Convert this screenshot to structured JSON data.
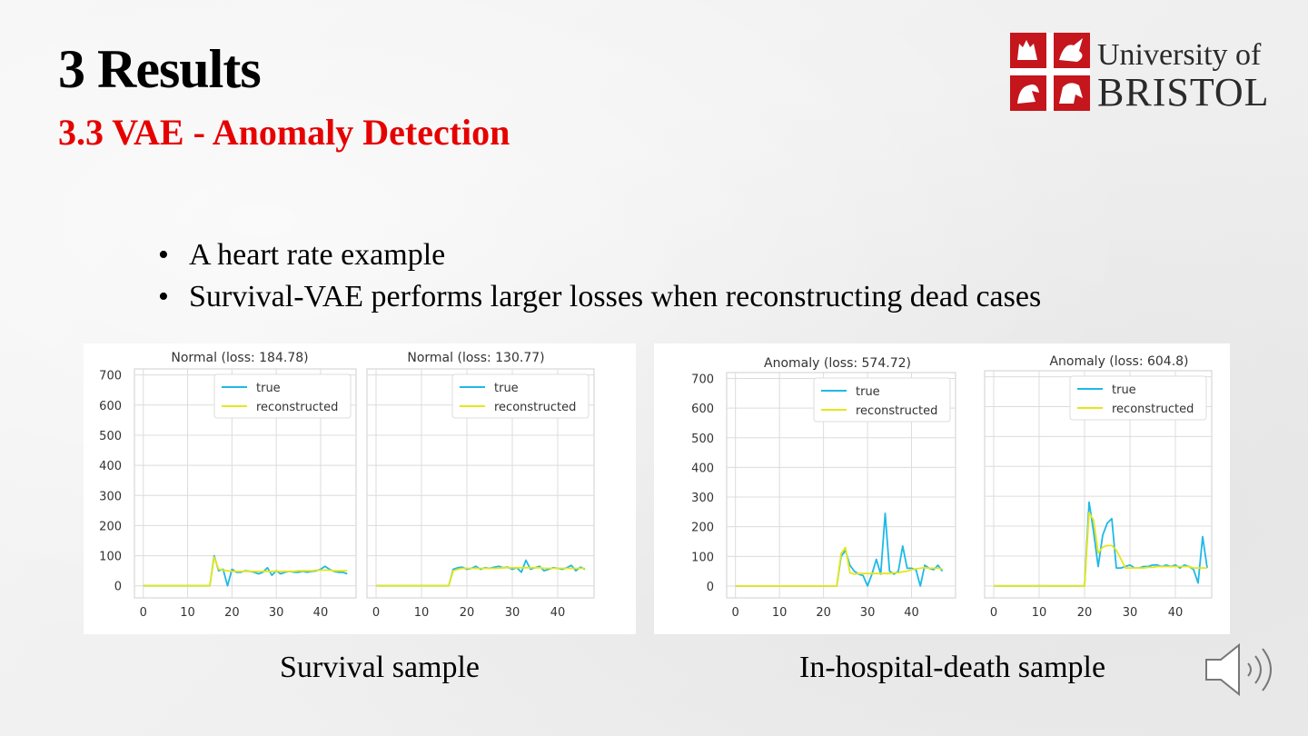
{
  "slide": {
    "title": "3 Results",
    "subtitle_bold": "3.3 VAE -",
    "subtitle_rest": " Anomaly Detection",
    "logo": {
      "line1": "University of",
      "line2": "BRISTOL"
    },
    "bullets": [
      "A heart rate example",
      "Survival-VAE performs larger losses when reconstructing dead cases"
    ],
    "captions": {
      "left": "Survival sample",
      "right": "In-hospital-death sample"
    },
    "colors": {
      "subtitle": "#e60000",
      "true_line": "#1fb9e6",
      "reconstructed_line": "#e6e61a"
    },
    "speaker_icon": "speaker-icon"
  },
  "chart_data": [
    {
      "type": "line",
      "title": "Normal (loss: 184.78)",
      "xlim": [
        -2,
        48
      ],
      "ylim": [
        -40,
        720
      ],
      "xticks": [
        0,
        10,
        20,
        30,
        40
      ],
      "yticks": [
        0,
        100,
        200,
        300,
        400,
        500,
        600,
        700
      ],
      "show_yticks": true,
      "legend": "top-right",
      "series": [
        {
          "name": "true",
          "color": "#1fb9e6",
          "x": [
            0,
            15,
            16,
            17,
            18,
            19,
            20,
            21,
            22,
            23,
            24,
            25,
            26,
            27,
            28,
            29,
            30,
            31,
            32,
            33,
            34,
            35,
            36,
            37,
            38,
            39,
            40,
            41,
            42,
            43,
            44,
            45,
            46
          ],
          "y": [
            0,
            0,
            100,
            50,
            55,
            0,
            55,
            45,
            45,
            50,
            48,
            45,
            40,
            45,
            60,
            35,
            50,
            40,
            45,
            48,
            45,
            45,
            48,
            45,
            48,
            50,
            55,
            65,
            55,
            48,
            45,
            45,
            40
          ]
        },
        {
          "name": "reconstructed",
          "color": "#e6e61a",
          "x": [
            0,
            15,
            16,
            17,
            18,
            19,
            20,
            21,
            22,
            23,
            24,
            25,
            26,
            27,
            28,
            29,
            30,
            31,
            32,
            33,
            34,
            35,
            36,
            37,
            38,
            39,
            40,
            41,
            42,
            43,
            44,
            45,
            46
          ],
          "y": [
            0,
            0,
            95,
            55,
            52,
            50,
            48,
            48,
            48,
            48,
            48,
            48,
            48,
            48,
            48,
            48,
            48,
            48,
            48,
            48,
            48,
            50,
            50,
            50,
            50,
            52,
            52,
            52,
            52,
            50,
            50,
            50,
            50
          ]
        }
      ]
    },
    {
      "type": "line",
      "title": "Normal (loss: 130.77)",
      "xlim": [
        -2,
        48
      ],
      "ylim": [
        -40,
        720
      ],
      "xticks": [
        0,
        10,
        20,
        30,
        40
      ],
      "yticks": [
        0,
        100,
        200,
        300,
        400,
        500,
        600,
        700
      ],
      "show_yticks": false,
      "legend": "top-right",
      "series": [
        {
          "name": "true",
          "color": "#1fb9e6",
          "x": [
            0,
            16,
            17,
            18,
            19,
            20,
            21,
            22,
            23,
            24,
            25,
            26,
            27,
            28,
            29,
            30,
            31,
            32,
            33,
            34,
            35,
            36,
            37,
            38,
            39,
            40,
            41,
            42,
            43,
            44,
            45,
            46
          ],
          "y": [
            0,
            0,
            55,
            60,
            62,
            55,
            58,
            65,
            55,
            60,
            58,
            62,
            65,
            60,
            62,
            55,
            60,
            45,
            85,
            55,
            60,
            65,
            50,
            55,
            60,
            58,
            55,
            60,
            68,
            50,
            62,
            55
          ]
        },
        {
          "name": "reconstructed",
          "color": "#e6e61a",
          "x": [
            0,
            16,
            17,
            18,
            19,
            20,
            21,
            22,
            23,
            24,
            25,
            26,
            27,
            28,
            29,
            30,
            31,
            32,
            33,
            34,
            35,
            36,
            37,
            38,
            39,
            40,
            41,
            42,
            43,
            44,
            45,
            46
          ],
          "y": [
            0,
            0,
            50,
            55,
            58,
            58,
            58,
            58,
            58,
            58,
            58,
            58,
            58,
            60,
            60,
            60,
            60,
            60,
            60,
            60,
            60,
            60,
            58,
            58,
            58,
            58,
            58,
            58,
            58,
            58,
            58,
            58
          ]
        }
      ]
    },
    {
      "type": "line",
      "title": "Anomaly (loss: 574.72)",
      "xlim": [
        -2,
        50
      ],
      "ylim": [
        -40,
        720
      ],
      "xticks": [
        0,
        10,
        20,
        30,
        40
      ],
      "yticks": [
        0,
        100,
        200,
        300,
        400,
        500,
        600,
        700
      ],
      "show_yticks": true,
      "legend": "top-right",
      "series": [
        {
          "name": "true",
          "color": "#1fb9e6",
          "x": [
            0,
            23,
            24,
            25,
            26,
            27,
            28,
            29,
            30,
            31,
            32,
            33,
            34,
            35,
            36,
            37,
            38,
            39,
            40,
            41,
            42,
            43,
            44,
            45,
            46,
            47
          ],
          "y": [
            0,
            0,
            100,
            120,
            70,
            50,
            40,
            35,
            0,
            40,
            90,
            40,
            245,
            50,
            40,
            50,
            135,
            60,
            60,
            55,
            0,
            70,
            60,
            55,
            70,
            50
          ]
        },
        {
          "name": "reconstructed",
          "color": "#e6e61a",
          "x": [
            0,
            23,
            24,
            25,
            26,
            27,
            28,
            29,
            30,
            31,
            32,
            33,
            34,
            35,
            36,
            37,
            38,
            39,
            40,
            41,
            42,
            43,
            44,
            45,
            46,
            47
          ],
          "y": [
            0,
            0,
            110,
            130,
            45,
            40,
            42,
            42,
            42,
            42,
            42,
            42,
            42,
            42,
            45,
            45,
            48,
            50,
            55,
            58,
            60,
            62,
            60,
            60,
            60,
            58
          ]
        }
      ]
    },
    {
      "type": "line",
      "title": "Anomaly (loss: 604.8)",
      "xlim": [
        -2,
        48
      ],
      "ylim": [
        -40,
        720
      ],
      "xticks": [
        0,
        10,
        20,
        30,
        40
      ],
      "yticks": [
        0,
        100,
        200,
        300,
        400,
        500,
        600,
        700
      ],
      "show_yticks": false,
      "legend": "top-right",
      "series": [
        {
          "name": "true",
          "color": "#1fb9e6",
          "x": [
            0,
            20,
            21,
            22,
            23,
            24,
            25,
            26,
            27,
            28,
            29,
            30,
            31,
            32,
            33,
            34,
            35,
            36,
            37,
            38,
            39,
            40,
            41,
            42,
            43,
            44,
            45,
            46,
            47
          ],
          "y": [
            0,
            0,
            280,
            180,
            65,
            170,
            210,
            225,
            60,
            60,
            65,
            70,
            60,
            60,
            65,
            65,
            70,
            70,
            65,
            70,
            65,
            70,
            60,
            70,
            65,
            55,
            10,
            165,
            60
          ]
        },
        {
          "name": "reconstructed",
          "color": "#e6e61a",
          "x": [
            0,
            20,
            21,
            22,
            23,
            24,
            25,
            26,
            27,
            28,
            29,
            30,
            31,
            32,
            33,
            34,
            35,
            36,
            37,
            38,
            39,
            40,
            41,
            42,
            43,
            44,
            45,
            46,
            47
          ],
          "y": [
            0,
            0,
            245,
            220,
            110,
            130,
            135,
            135,
            120,
            90,
            60,
            60,
            60,
            60,
            60,
            62,
            62,
            65,
            65,
            65,
            65,
            65,
            65,
            65,
            65,
            60,
            60,
            60,
            60
          ]
        }
      ]
    }
  ]
}
